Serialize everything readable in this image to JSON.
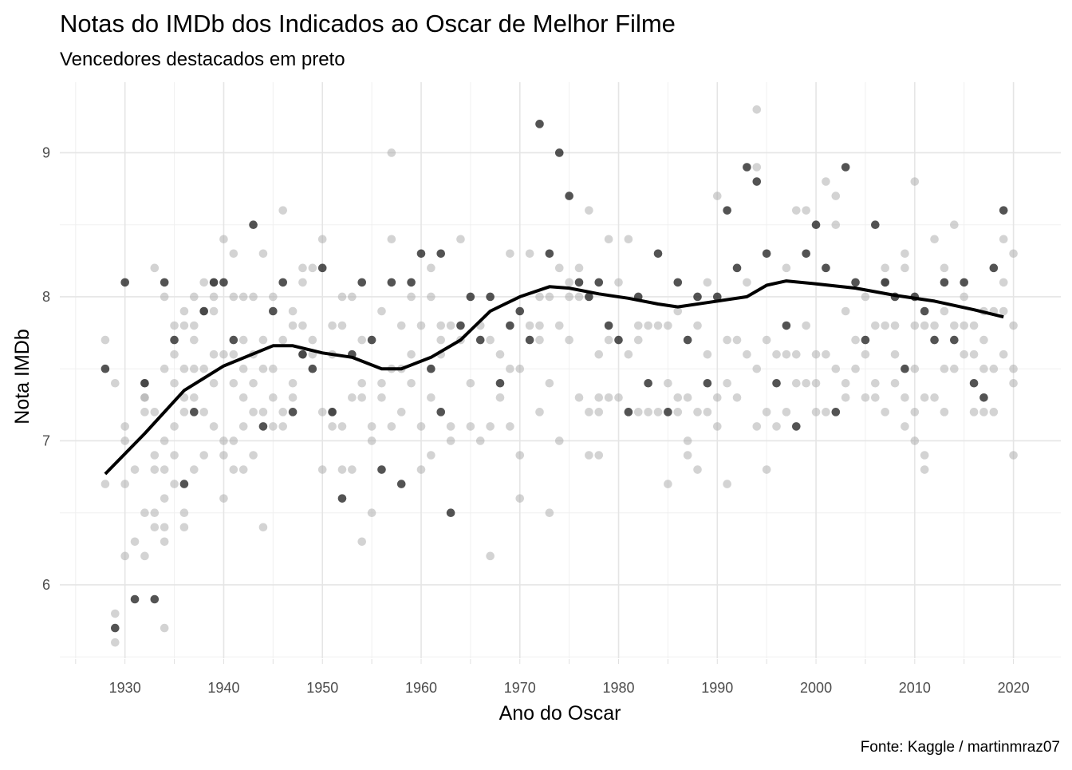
{
  "chart_data": {
    "type": "scatter",
    "title": "Notas do IMDb dos Indicados ao Oscar de Melhor Filme",
    "subtitle": "Vencedores destacados em preto",
    "x_label": "Ano do Oscar",
    "y_label": "Nota IMDb",
    "caption": "Fonte: Kaggle / martinmraz07",
    "xlim": [
      1923.4,
      2024.8
    ],
    "ylim": [
      5.49,
      9.49
    ],
    "xticks": [
      1930,
      1940,
      1950,
      1960,
      1970,
      1980,
      1990,
      2000,
      2010,
      2020
    ],
    "yticks": [
      6,
      7,
      8,
      9
    ],
    "x_minor_ticks": [
      1925,
      1935,
      1945,
      1955,
      1965,
      1975,
      1985,
      1995,
      2005,
      2015
    ],
    "y_minor_ticks": [
      5.5,
      6.5,
      7.5,
      8.5
    ],
    "grid": true,
    "series": [
      {
        "color": "#a8a8a8",
        "x": [
          1928,
          1928,
          1929,
          1929,
          1929,
          1930,
          1930,
          1930,
          1930,
          1931,
          1931,
          1932,
          1932,
          1932,
          1932,
          1932,
          1932,
          1933,
          1933,
          1933,
          1933,
          1933,
          1933,
          1934,
          1934,
          1934,
          1934,
          1934,
          1934,
          1934,
          1934,
          1935,
          1935,
          1935,
          1935,
          1935,
          1935,
          1936,
          1936,
          1936,
          1936,
          1936,
          1936,
          1936,
          1937,
          1937,
          1937,
          1937,
          1937,
          1937,
          1938,
          1938,
          1938,
          1938,
          1938,
          1939,
          1939,
          1939,
          1939,
          1939,
          1939,
          1940,
          1940,
          1940,
          1940,
          1940,
          1941,
          1941,
          1941,
          1941,
          1941,
          1941,
          1942,
          1942,
          1942,
          1942,
          1942,
          1942,
          1943,
          1943,
          1943,
          1943,
          1943,
          1944,
          1944,
          1944,
          1944,
          1944,
          1945,
          1945,
          1945,
          1945,
          1946,
          1946,
          1946,
          1946,
          1947,
          1947,
          1947,
          1947,
          1948,
          1948,
          1948,
          1948,
          1949,
          1949,
          1949,
          1950,
          1950,
          1950,
          1951,
          1951,
          1951,
          1951,
          1952,
          1952,
          1952,
          1952,
          1953,
          1953,
          1953,
          1954,
          1954,
          1954,
          1954,
          1955,
          1955,
          1955,
          1956,
          1956,
          1956,
          1957,
          1957,
          1957,
          1957,
          1958,
          1958,
          1958,
          1959,
          1959,
          1959,
          1960,
          1960,
          1960,
          1961,
          1961,
          1961,
          1961,
          1962,
          1962,
          1962,
          1963,
          1963,
          1963,
          1964,
          1964,
          1965,
          1965,
          1966,
          1966,
          1967,
          1967,
          1967,
          1968,
          1968,
          1969,
          1969,
          1969,
          1970,
          1970,
          1970,
          1971,
          1971,
          1972,
          1972,
          1972,
          1972,
          1973,
          1973,
          1973,
          1974,
          1974,
          1974,
          1975,
          1975,
          1975,
          1976,
          1976,
          1976,
          1977,
          1977,
          1977,
          1978,
          1978,
          1978,
          1978,
          1979,
          1979,
          1979,
          1980,
          1980,
          1981,
          1981,
          1982,
          1982,
          1982,
          1983,
          1983,
          1984,
          1984,
          1985,
          1985,
          1985,
          1986,
          1986,
          1986,
          1987,
          1987,
          1987,
          1988,
          1988,
          1988,
          1989,
          1989,
          1989,
          1990,
          1990,
          1990,
          1991,
          1991,
          1991,
          1992,
          1992,
          1993,
          1993,
          1994,
          1994,
          1994,
          1994,
          1995,
          1995,
          1995,
          1996,
          1996,
          1997,
          1997,
          1997,
          1998,
          1998,
          1998,
          1999,
          1999,
          1999,
          2000,
          2000,
          2000,
          2001,
          2001,
          2001,
          2002,
          2002,
          2002,
          2003,
          2003,
          2003,
          2004,
          2004,
          2005,
          2005,
          2005,
          2006,
          2006,
          2006,
          2007,
          2007,
          2007,
          2007,
          2008,
          2008,
          2008,
          2009,
          2009,
          2009,
          2009,
          2010,
          2010,
          2010,
          2010,
          2010,
          2011,
          2011,
          2011,
          2011,
          2012,
          2012,
          2012,
          2013,
          2013,
          2013,
          2013,
          2014,
          2014,
          2014,
          2015,
          2015,
          2015,
          2016,
          2016,
          2016,
          2017,
          2017,
          2017,
          2017,
          2018,
          2018,
          2018,
          2019,
          2019,
          2019,
          2019,
          2020,
          2020,
          2020,
          2020,
          2020
        ],
        "values": [
          7.7,
          6.7,
          7.4,
          5.8,
          5.6,
          7.1,
          7.0,
          6.7,
          6.2,
          6.8,
          6.3,
          7.4,
          7.3,
          7.2,
          6.5,
          6.2,
          7.3,
          8.2,
          7.2,
          6.9,
          6.8,
          6.5,
          6.4,
          8.0,
          7.5,
          7.0,
          6.8,
          6.6,
          6.4,
          6.3,
          5.7,
          7.8,
          7.4,
          7.1,
          6.9,
          6.7,
          7.6,
          7.9,
          7.8,
          7.5,
          7.3,
          7.2,
          6.5,
          6.4,
          8.0,
          7.8,
          7.7,
          7.5,
          7.3,
          6.8,
          8.1,
          7.9,
          7.5,
          7.2,
          6.9,
          8.1,
          8.0,
          7.9,
          7.6,
          7.4,
          7.1,
          8.4,
          7.6,
          7.0,
          6.9,
          6.6,
          8.3,
          8.0,
          7.6,
          7.4,
          7.0,
          6.8,
          8.0,
          7.7,
          7.5,
          7.3,
          7.1,
          6.8,
          8.0,
          7.6,
          7.4,
          7.2,
          6.9,
          8.3,
          7.7,
          7.5,
          7.2,
          6.4,
          8.0,
          7.5,
          7.3,
          7.1,
          8.6,
          7.7,
          7.2,
          7.1,
          7.9,
          7.8,
          7.4,
          7.3,
          8.2,
          8.1,
          7.8,
          7.6,
          8.2,
          7.7,
          7.6,
          8.4,
          7.2,
          6.8,
          7.8,
          7.6,
          7.2,
          7.1,
          8.0,
          7.8,
          7.1,
          6.8,
          8.0,
          7.3,
          6.8,
          7.7,
          7.4,
          7.3,
          6.3,
          7.1,
          7.0,
          6.5,
          7.9,
          7.4,
          7.3,
          9.0,
          8.4,
          7.5,
          7.1,
          7.8,
          7.5,
          7.2,
          8.0,
          7.6,
          7.4,
          7.8,
          7.1,
          6.8,
          8.2,
          8.0,
          7.3,
          6.9,
          7.8,
          7.7,
          7.6,
          7.8,
          7.1,
          7.0,
          8.4,
          7.7,
          7.4,
          7.1,
          7.8,
          7.0,
          7.7,
          7.1,
          6.2,
          7.6,
          7.3,
          8.3,
          7.5,
          7.1,
          7.5,
          6.9,
          6.6,
          8.3,
          7.8,
          8.0,
          7.8,
          7.7,
          7.2,
          8.0,
          7.4,
          6.5,
          8.2,
          7.8,
          7.0,
          8.1,
          8.0,
          7.7,
          8.2,
          8.0,
          7.3,
          8.6,
          7.2,
          6.9,
          7.6,
          7.3,
          7.2,
          6.9,
          8.4,
          7.7,
          7.3,
          8.1,
          7.3,
          8.4,
          7.6,
          7.8,
          7.7,
          7.2,
          7.8,
          7.2,
          7.8,
          7.2,
          7.8,
          7.4,
          6.7,
          7.9,
          7.3,
          7.2,
          7.3,
          7.0,
          6.9,
          7.8,
          7.2,
          6.8,
          8.1,
          7.6,
          7.2,
          8.7,
          7.3,
          7.1,
          7.7,
          7.4,
          6.7,
          7.7,
          7.3,
          8.1,
          7.6,
          9.3,
          8.9,
          7.5,
          7.1,
          7.7,
          7.2,
          6.8,
          7.6,
          7.1,
          8.2,
          7.6,
          7.2,
          8.6,
          7.6,
          7.4,
          8.6,
          7.8,
          7.4,
          7.6,
          7.4,
          7.2,
          8.8,
          7.6,
          7.2,
          8.7,
          8.5,
          7.5,
          7.9,
          7.4,
          7.3,
          7.7,
          7.5,
          8.0,
          7.6,
          7.3,
          7.8,
          7.4,
          7.3,
          8.2,
          8.1,
          7.8,
          7.2,
          7.8,
          7.6,
          7.4,
          8.3,
          8.2,
          7.3,
          7.1,
          8.8,
          7.8,
          7.5,
          7.2,
          7.0,
          7.8,
          7.3,
          6.9,
          6.8,
          8.4,
          7.8,
          7.3,
          8.2,
          7.9,
          7.5,
          7.2,
          8.5,
          7.8,
          7.5,
          8.0,
          7.8,
          7.6,
          7.8,
          7.6,
          7.2,
          7.9,
          7.7,
          7.5,
          7.2,
          7.9,
          7.5,
          7.2,
          8.4,
          8.1,
          7.9,
          7.6,
          8.3,
          7.8,
          7.5,
          7.4,
          6.9
        ]
      },
      {
        "color": "#1a1a1a",
        "x": [
          1928,
          1929,
          1930,
          1931,
          1932,
          1933,
          1934,
          1935,
          1936,
          1937,
          1938,
          1939,
          1940,
          1941,
          1943,
          1944,
          1945,
          1946,
          1947,
          1948,
          1949,
          1950,
          1951,
          1952,
          1953,
          1954,
          1955,
          1956,
          1957,
          1958,
          1959,
          1960,
          1961,
          1962,
          1962,
          1963,
          1964,
          1965,
          1966,
          1967,
          1968,
          1969,
          1970,
          1971,
          1972,
          1973,
          1974,
          1975,
          1976,
          1977,
          1978,
          1979,
          1980,
          1981,
          1982,
          1983,
          1984,
          1985,
          1986,
          1987,
          1988,
          1989,
          1990,
          1991,
          1992,
          1993,
          1994,
          1995,
          1996,
          1997,
          1998,
          1999,
          2000,
          2001,
          2002,
          2003,
          2004,
          2005,
          2006,
          2007,
          2008,
          2009,
          2010,
          2011,
          2012,
          2013,
          2014,
          2015,
          2016,
          2017,
          2018,
          2019
        ],
        "values": [
          7.5,
          5.7,
          8.1,
          5.9,
          7.4,
          5.9,
          8.1,
          7.7,
          6.7,
          7.2,
          7.9,
          8.1,
          8.1,
          7.7,
          8.5,
          7.1,
          7.9,
          8.1,
          7.2,
          7.6,
          7.5,
          8.2,
          7.2,
          6.6,
          7.6,
          8.1,
          7.7,
          6.8,
          8.1,
          6.7,
          8.1,
          8.3,
          7.5,
          8.3,
          7.2,
          6.5,
          7.8,
          8.0,
          7.7,
          8.0,
          7.4,
          7.8,
          7.9,
          7.7,
          9.2,
          8.3,
          9.0,
          8.7,
          8.1,
          8.0,
          8.1,
          7.8,
          7.7,
          7.2,
          8.0,
          7.4,
          8.3,
          7.2,
          8.1,
          7.7,
          8.0,
          7.4,
          8.0,
          8.6,
          8.2,
          8.9,
          8.8,
          8.3,
          7.4,
          7.8,
          7.1,
          8.3,
          8.5,
          8.2,
          7.2,
          8.9,
          8.1,
          7.7,
          8.5,
          8.1,
          8.0,
          7.5,
          8.0,
          7.9,
          7.7,
          8.1,
          7.7,
          8.1,
          7.4,
          7.3,
          8.2,
          8.6
        ]
      }
    ],
    "trend": {
      "color": "#000000",
      "x": [
        1928,
        1932,
        1936,
        1940,
        1945,
        1947,
        1950,
        1953,
        1956,
        1958,
        1961,
        1964,
        1967,
        1970,
        1973,
        1975,
        1978,
        1981,
        1984,
        1986,
        1989,
        1993,
        1995,
        1997,
        2000,
        2004,
        2008,
        2012,
        2016,
        2019
      ],
      "values": [
        6.77,
        7.05,
        7.35,
        7.52,
        7.66,
        7.66,
        7.61,
        7.58,
        7.5,
        7.5,
        7.58,
        7.7,
        7.9,
        8.0,
        8.07,
        8.06,
        8.02,
        7.99,
        7.95,
        7.93,
        7.96,
        8.0,
        8.08,
        8.11,
        8.09,
        8.06,
        8.01,
        7.97,
        7.91,
        7.86
      ]
    }
  }
}
